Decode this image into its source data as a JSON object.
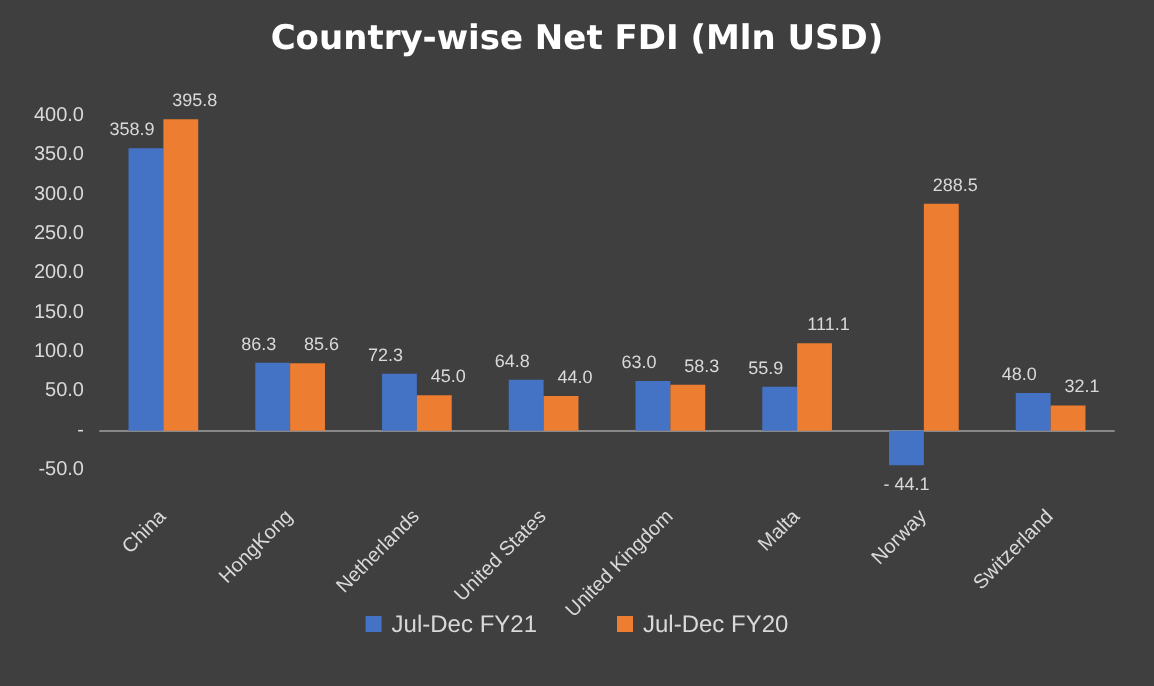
{
  "chart_data": {
    "type": "bar",
    "title": "Country-wise Net FDI (Mln USD)",
    "categories": [
      "China",
      "HongKong",
      "Netherlands",
      "United States",
      "United Kingdom",
      "Malta",
      "Norway",
      "Switzerland"
    ],
    "series": [
      {
        "name": "Jul-Dec FY21",
        "color": "#4472c4",
        "values": [
          358.9,
          86.3,
          72.3,
          64.8,
          63.0,
          55.9,
          -44.1,
          48.0
        ],
        "value_labels": [
          "358.9",
          "86.3",
          "72.3",
          "64.8",
          "63.0",
          "55.9",
          "- 44.1",
          "48.0"
        ]
      },
      {
        "name": "Jul-Dec FY20",
        "color": "#ed7d31",
        "values": [
          395.8,
          85.6,
          45.0,
          44.0,
          58.3,
          111.1,
          288.5,
          32.1
        ],
        "value_labels": [
          "395.8",
          "85.6",
          "45.0",
          "44.0",
          "58.3",
          "111.1",
          "288.5",
          "32.1"
        ]
      }
    ],
    "ylim": [
      -50,
      400
    ],
    "yticks": [
      {
        "value": -50,
        "label": "-50.0"
      },
      {
        "value": 0,
        "label": "-"
      },
      {
        "value": 50,
        "label": "50.0"
      },
      {
        "value": 100,
        "label": "100.0"
      },
      {
        "value": 150,
        "label": "150.0"
      },
      {
        "value": 200,
        "label": "200.0"
      },
      {
        "value": 250,
        "label": "250.0"
      },
      {
        "value": 300,
        "label": "300.0"
      },
      {
        "value": 350,
        "label": "350.0"
      },
      {
        "value": 400,
        "label": "400.0"
      }
    ],
    "legend": "bottom"
  }
}
